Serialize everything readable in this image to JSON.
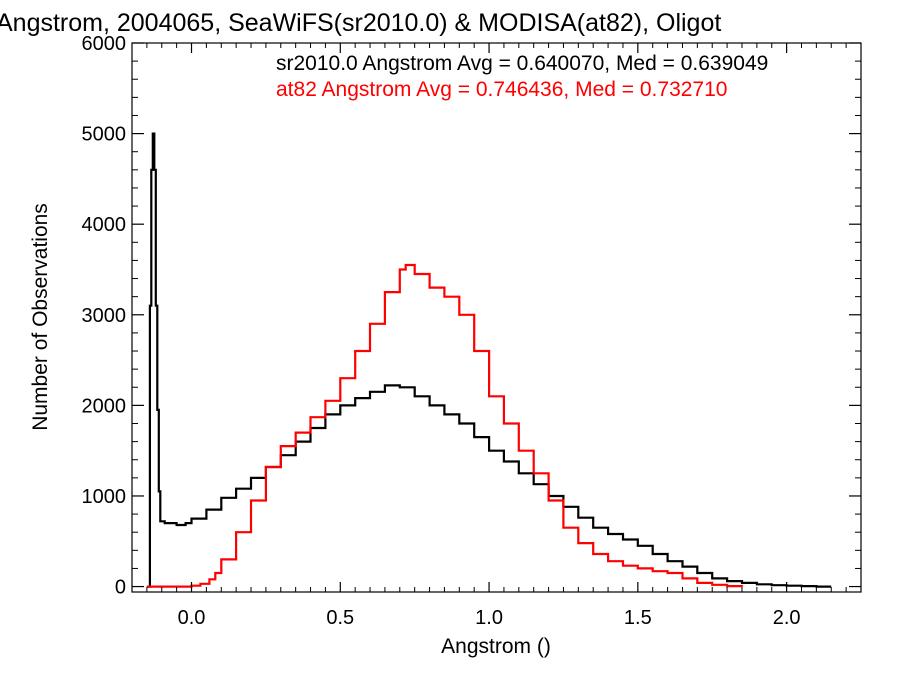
{
  "chart_data": {
    "type": "line",
    "step": true,
    "title": "Angstrom, 2004065, SeaWiFS(sr2010.0) & MODISA(at82), Oligot",
    "xlabel": "Angstrom ()",
    "ylabel": "Number of Observations",
    "xlim": [
      -0.2,
      2.25
    ],
    "ylim": [
      -60,
      6000
    ],
    "x_ticks": [
      "0.0",
      "0.5",
      "1.0",
      "1.5",
      "2.0"
    ],
    "y_ticks": [
      "0",
      "1000",
      "2000",
      "3000",
      "4000",
      "5000",
      "6000"
    ],
    "grid": false,
    "legend_position": "top-right",
    "series": [
      {
        "name": "sr2010.0",
        "label": "sr2010.0 Angstrom Avg = 0.640070, Med = 0.639049",
        "color": "#000000",
        "x": [
          -0.15,
          -0.14,
          -0.135,
          -0.13,
          -0.125,
          -0.12,
          -0.115,
          -0.11,
          -0.105,
          -0.1,
          -0.09,
          -0.05,
          -0.02,
          0.0,
          0.05,
          0.1,
          0.15,
          0.2,
          0.25,
          0.3,
          0.35,
          0.4,
          0.45,
          0.5,
          0.55,
          0.6,
          0.65,
          0.7,
          0.75,
          0.8,
          0.85,
          0.9,
          0.95,
          1.0,
          1.05,
          1.1,
          1.15,
          1.2,
          1.25,
          1.3,
          1.35,
          1.4,
          1.45,
          1.5,
          1.55,
          1.6,
          1.65,
          1.7,
          1.75,
          1.8,
          1.85,
          1.9,
          1.95,
          2.0,
          2.05,
          2.1,
          2.15
        ],
        "y": [
          0,
          3100,
          4600,
          5000,
          4600,
          3100,
          1950,
          1050,
          720,
          720,
          700,
          680,
          700,
          750,
          850,
          980,
          1080,
          1200,
          1320,
          1450,
          1600,
          1750,
          1900,
          2000,
          2080,
          2150,
          2220,
          2200,
          2100,
          2000,
          1900,
          1800,
          1650,
          1500,
          1380,
          1250,
          1130,
          1000,
          880,
          760,
          650,
          580,
          520,
          450,
          360,
          280,
          220,
          150,
          90,
          60,
          40,
          25,
          15,
          10,
          5,
          0,
          0
        ]
      },
      {
        "name": "at82",
        "label": "at82 Angstrom Avg = 0.746436, Med = 0.732710",
        "color": "#ff0000",
        "x": [
          -0.15,
          -0.1,
          -0.05,
          0.0,
          0.03,
          0.06,
          0.08,
          0.1,
          0.15,
          0.2,
          0.25,
          0.3,
          0.35,
          0.4,
          0.45,
          0.5,
          0.55,
          0.6,
          0.65,
          0.7,
          0.72,
          0.75,
          0.8,
          0.85,
          0.9,
          0.95,
          1.0,
          1.05,
          1.1,
          1.15,
          1.2,
          1.25,
          1.3,
          1.35,
          1.4,
          1.45,
          1.5,
          1.55,
          1.6,
          1.65,
          1.7,
          1.75,
          1.8,
          1.85
        ],
        "y": [
          0,
          0,
          0,
          10,
          30,
          80,
          150,
          300,
          600,
          950,
          1320,
          1550,
          1700,
          1870,
          2050,
          2300,
          2600,
          2900,
          3250,
          3500,
          3550,
          3450,
          3300,
          3200,
          3000,
          2600,
          2100,
          1800,
          1500,
          1250,
          950,
          650,
          480,
          360,
          280,
          230,
          200,
          170,
          150,
          90,
          40,
          20,
          5,
          0
        ]
      }
    ]
  }
}
